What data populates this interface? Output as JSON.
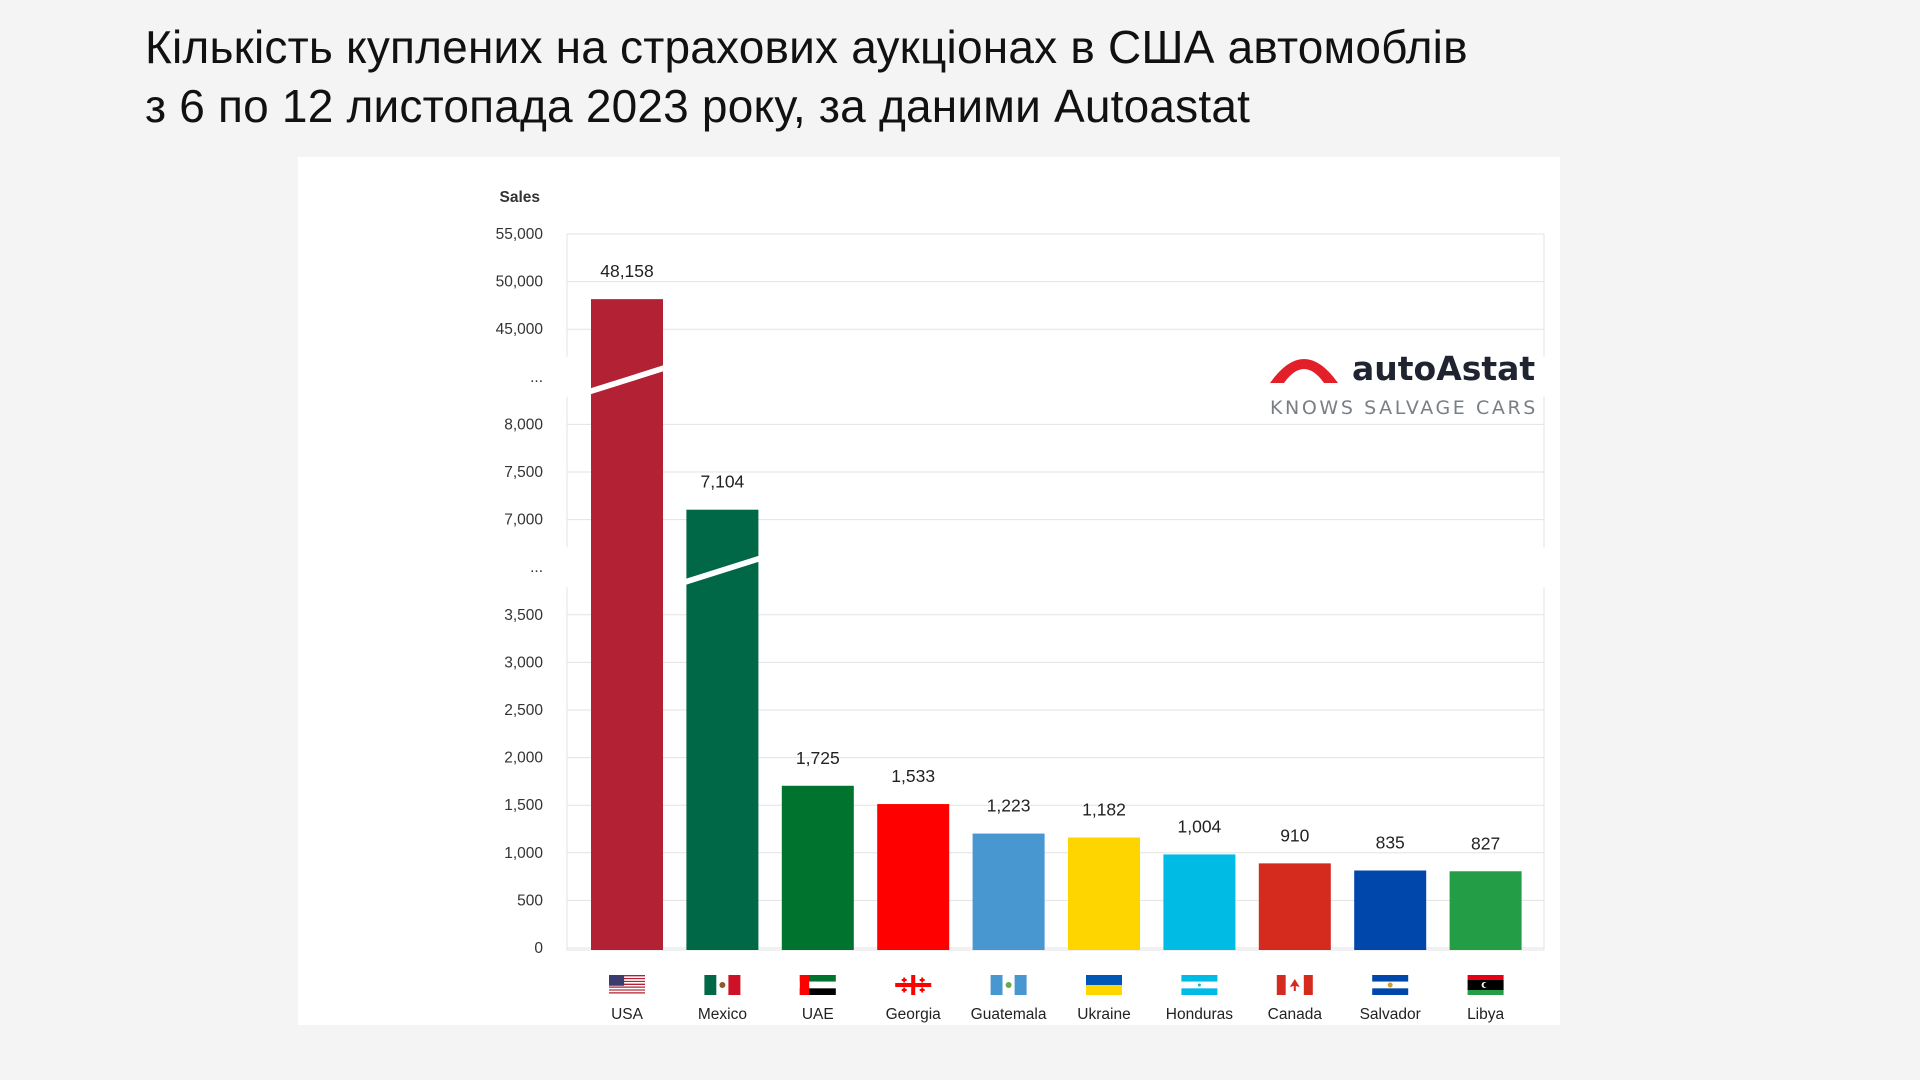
{
  "title": {
    "line1": "Кількість куплених на страхових аукціонах в США автомоблів",
    "line2": "з 6 по 12 листопада 2023 року, за даними Autoastat"
  },
  "logo": {
    "name": "autoAstat",
    "tagline": "KNOWS SALVAGE CARS",
    "color": "#e3202a"
  },
  "chart_data": {
    "type": "bar",
    "title": "",
    "xlabel": "",
    "ylabel": "Sales",
    "axis_break": true,
    "grid": true,
    "ylim": [
      0,
      55000
    ],
    "y_ticks": [
      "55,000",
      "50,000",
      "45,000",
      "...",
      "8,000",
      "7,500",
      "7,000",
      "...",
      "3,500",
      "3,000",
      "2,500",
      "2,000",
      "1,500",
      "1,000",
      "500",
      "0"
    ],
    "categories": [
      "USA",
      "Mexico",
      "UAE",
      "Georgia",
      "Guatemala",
      "Ukraine",
      "Honduras",
      "Canada",
      "Salvador",
      "Libya"
    ],
    "values": [
      48158,
      7104,
      1725,
      1533,
      1223,
      1182,
      1004,
      910,
      835,
      827
    ],
    "value_labels": [
      "48,158",
      "7,104",
      "1,725",
      "1,533",
      "1,223",
      "1,182",
      "1,004",
      "910",
      "835",
      "827"
    ],
    "colors": [
      "#b22234",
      "#006847",
      "#00732f",
      "#ff0000",
      "#4997d0",
      "#ffd500",
      "#00bce4",
      "#d52b1e",
      "#0047ab",
      "#239e46"
    ],
    "flags": [
      "usa-flag",
      "mexico-flag",
      "uae-flag",
      "georgia-flag",
      "guatemala-flag",
      "ukraine-flag",
      "honduras-flag",
      "canada-flag",
      "salvador-flag",
      "libya-flag"
    ]
  }
}
